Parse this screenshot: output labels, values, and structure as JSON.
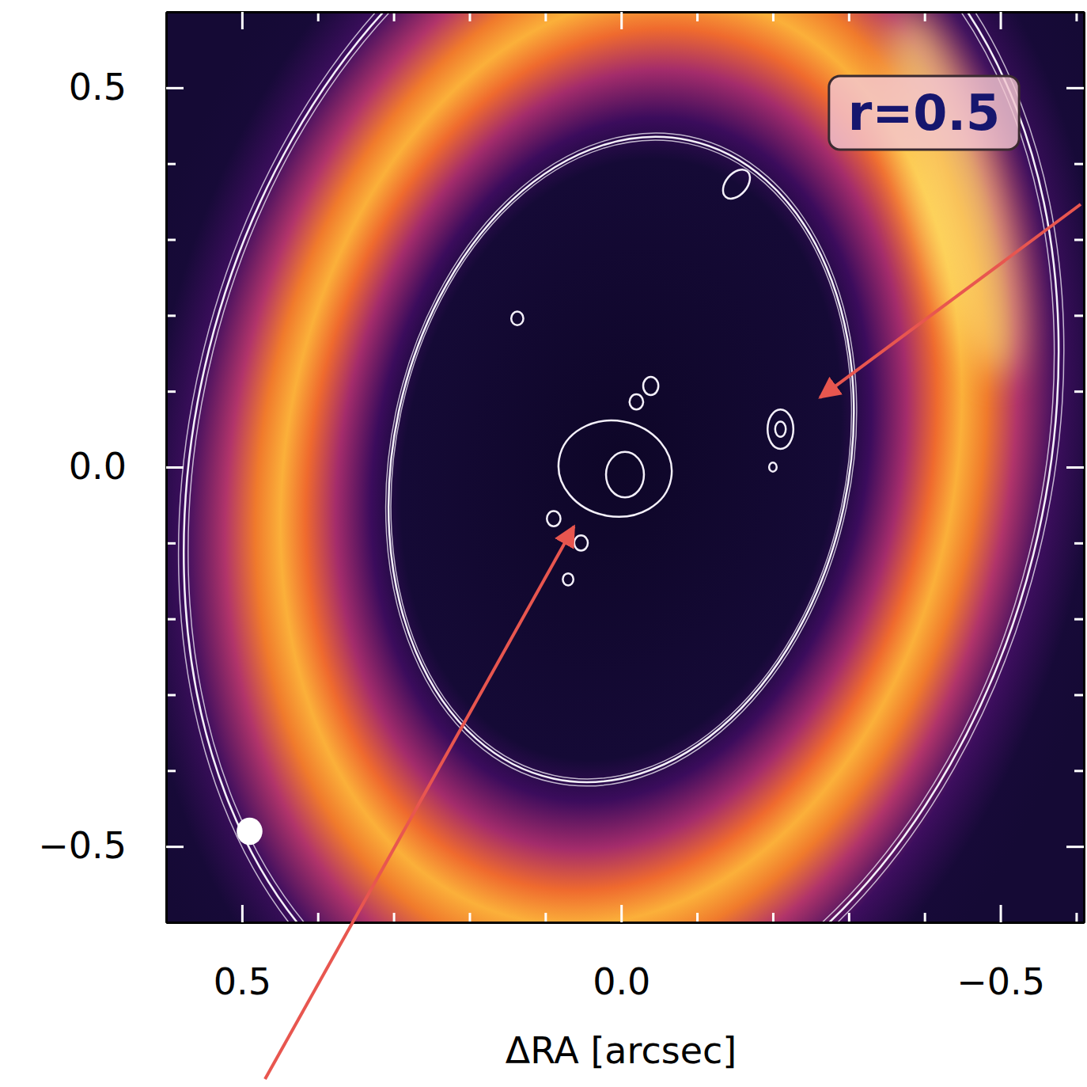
{
  "chart_data": {
    "type": "image",
    "annotation": "r=0.5",
    "xlabel": "ΔRA [arcsec]",
    "xlim": [
      0.6,
      -0.61
    ],
    "ylim": [
      -0.6,
      0.6
    ],
    "xticks": [
      0.5,
      {
        "value": 0,
        "label": "0.0"
      },
      {
        "value": -0.5,
        "label": "−0.5"
      }
    ],
    "yticks": [
      {
        "value": -0.5,
        "label": "−0.5"
      },
      {
        "value": 0,
        "label": "0.0"
      },
      0.5
    ],
    "minor_xticks": [
      0.4,
      0.3,
      0.2,
      0.1,
      -0.1,
      -0.2,
      -0.3,
      -0.4,
      -0.6
    ],
    "minor_yticks": [
      -0.4,
      -0.3,
      -0.2,
      -0.1,
      0.1,
      0.2,
      0.3,
      0.4
    ],
    "ring": {
      "x": 0,
      "y": 0.01,
      "semi_major": 0.62,
      "semi_minor": 0.44,
      "width": 0.13,
      "pa": -12
    },
    "peak": {
      "x": -0.44,
      "y": 0.36
    },
    "contours": [
      {
        "x": 0,
        "y": 0.01,
        "semi_major": 0.43,
        "semi_minor": 0.3,
        "pa": -12
      },
      {
        "x": 0,
        "y": 0.02,
        "semi_major": 0.8,
        "semi_minor": 0.56,
        "pa": -14
      },
      {
        "x": 0.008,
        "y": -0.002,
        "semi_major": 0.075,
        "semi_minor": 0.063,
        "pa": 80
      },
      {
        "x": -0.005,
        "y": -0.01,
        "semi_major": 0.03,
        "semi_minor": 0.025,
        "pa": 0
      },
      {
        "x": -0.21,
        "y": 0.05,
        "semi_major": 0.026,
        "semi_minor": 0.017,
        "pa": 0
      },
      {
        "x": -0.21,
        "y": 0.05,
        "semi_major": 0.01,
        "semi_minor": 0.007,
        "pa": 0
      },
      {
        "x": -0.039,
        "y": 0.107,
        "semi_major": 0.012,
        "semi_minor": 0.01,
        "pa": 0
      },
      {
        "x": -0.02,
        "y": 0.086,
        "semi_major": 0.01,
        "semi_minor": 0.009,
        "pa": 0
      },
      {
        "x": 0.089,
        "y": -0.068,
        "semi_major": 0.01,
        "semi_minor": 0.009,
        "pa": 0
      },
      {
        "x": 0.053,
        "y": -0.1,
        "semi_major": 0.01,
        "semi_minor": 0.009,
        "pa": 0
      },
      {
        "x": 0.07,
        "y": -0.148,
        "semi_major": 0.008,
        "semi_minor": 0.007,
        "pa": 0
      },
      {
        "x": 0.137,
        "y": 0.196,
        "semi_major": 0.009,
        "semi_minor": 0.008,
        "pa": 0
      },
      {
        "x": -0.152,
        "y": 0.373,
        "semi_major": 0.022,
        "semi_minor": 0.014,
        "pa": -40
      },
      {
        "x": -0.2,
        "y": 0,
        "semi_major": 0.006,
        "semi_minor": 0.005,
        "pa": 0
      }
    ],
    "beam": {
      "x": 0.49,
      "y": -0.48,
      "semi_major": 0.018,
      "semi_minor": 0.017
    }
  }
}
